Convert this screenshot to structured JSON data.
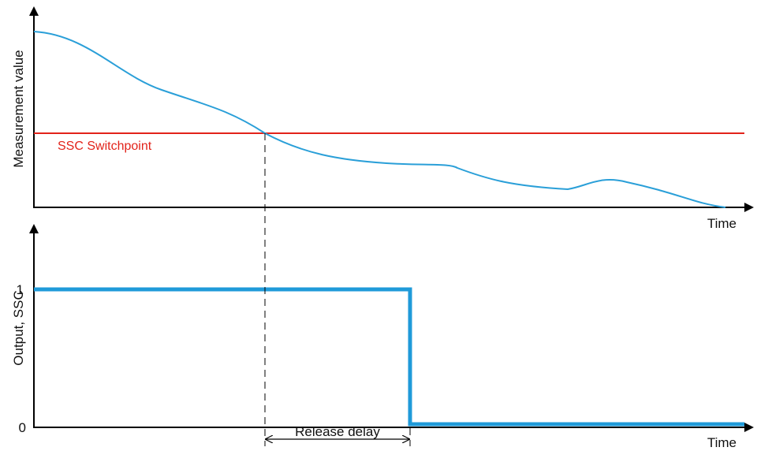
{
  "colors": {
    "curve": "#2a9fd8",
    "output": "#1f9ad9",
    "switchpoint": "#e2231a",
    "axis": "#000000",
    "guide": "#000000"
  },
  "top_chart": {
    "ylabel": "Measurement value",
    "xlabel": "Time",
    "switchpoint_label": "SSC Switchpoint"
  },
  "bottom_chart": {
    "ylabel": "Output, SSC",
    "xlabel": "Time",
    "tick_high": "1",
    "tick_low": "0",
    "delay_label": "Release delay"
  }
}
